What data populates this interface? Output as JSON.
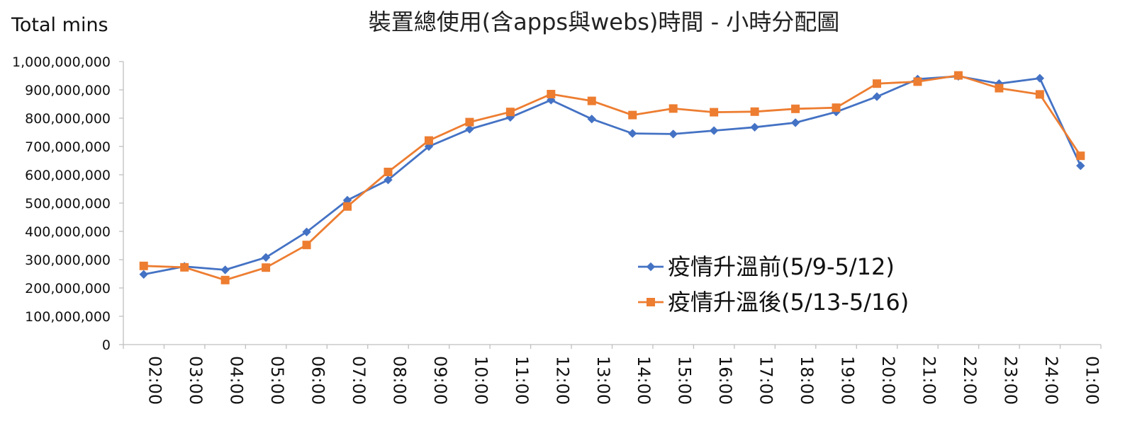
{
  "chart_data": {
    "type": "line",
    "title": "裝置總使用(含apps與webs)時間 - 小時分配圖",
    "xlabel": "",
    "ylabel": "Total mins",
    "categories": [
      "02:00",
      "03:00",
      "04:00",
      "05:00",
      "06:00",
      "07:00",
      "08:00",
      "09:00",
      "10:00",
      "11:00",
      "12:00",
      "13:00",
      "14:00",
      "15:00",
      "16:00",
      "17:00",
      "18:00",
      "19:00",
      "20:00",
      "21:00",
      "22:00",
      "23:00",
      "24:00",
      "01:00"
    ],
    "ylim": [
      0,
      1000000000
    ],
    "yticks": [
      "0",
      "100,000,000",
      "200,000,000",
      "300,000,000",
      "400,000,000",
      "500,000,000",
      "600,000,000",
      "700,000,000",
      "800,000,000",
      "900,000,000",
      "1,000,000,000"
    ],
    "grid": false,
    "legend_position": "bottom-right",
    "series": [
      {
        "name": "疫情升溫前(5/9-5/12)",
        "color": "#4472C4",
        "marker": "diamond",
        "values": [
          248000000,
          276000000,
          264000000,
          308000000,
          398000000,
          510000000,
          582000000,
          700000000,
          761000000,
          803000000,
          864000000,
          797000000,
          746000000,
          744000000,
          756000000,
          768000000,
          784000000,
          822000000,
          876000000,
          938000000,
          948000000,
          922000000,
          941000000,
          632000000
        ]
      },
      {
        "name": "疫情升溫後(5/13-5/16)",
        "color": "#ED7D31",
        "marker": "square",
        "values": [
          278000000,
          273000000,
          228000000,
          272000000,
          352000000,
          488000000,
          610000000,
          721000000,
          786000000,
          822000000,
          885000000,
          861000000,
          811000000,
          834000000,
          821000000,
          823000000,
          833000000,
          837000000,
          922000000,
          929000000,
          951000000,
          906000000,
          884000000,
          667000000
        ]
      }
    ]
  }
}
